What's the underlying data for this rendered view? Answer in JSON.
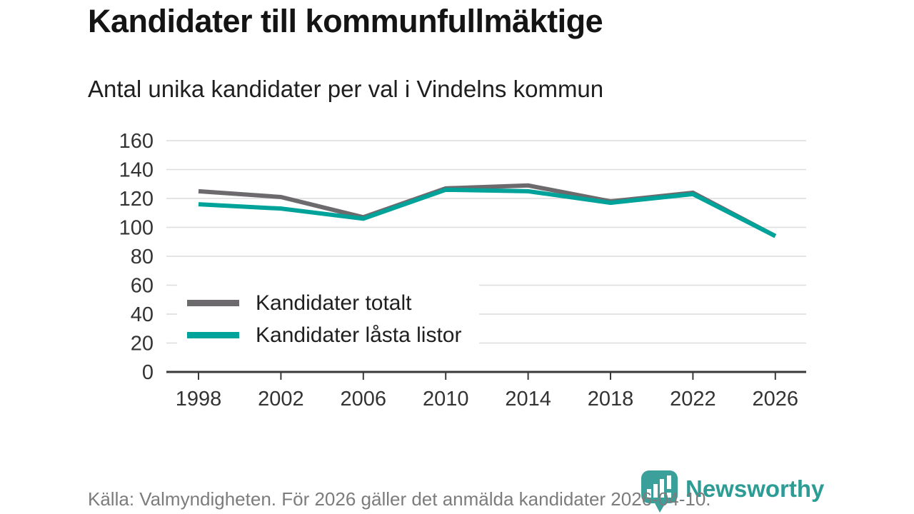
{
  "header": {
    "title": "Kandidater till kommunfullmäktige",
    "subtitle": "Antal unika kandidater per val i Vindelns kommun"
  },
  "chart_data": {
    "type": "line",
    "x": [
      1998,
      2002,
      2006,
      2010,
      2014,
      2018,
      2022,
      2026
    ],
    "series": [
      {
        "name": "Kandidater totalt",
        "color": "#6d6a6d",
        "values": [
          125,
          121,
          107,
          127,
          129,
          118,
          124,
          94
        ]
      },
      {
        "name": "Kandidater låsta listor",
        "color": "#00a39a",
        "values": [
          116,
          113,
          106,
          126,
          125,
          117,
          123,
          94
        ]
      }
    ],
    "ylim": [
      0,
      160
    ],
    "yticks": [
      0,
      20,
      40,
      60,
      80,
      100,
      120,
      140,
      160
    ],
    "grid": true,
    "legend_position": "inside-bottom-left",
    "colors": {
      "grid": "#dcdcdc",
      "axis": "#3a3a3a",
      "tick_label": "#333333"
    }
  },
  "footer": {
    "source": "Källa: Valmyndigheten. För 2026 gäller det anmälda kandidater 2026-04-10.",
    "brand": "Newsworthy",
    "brand_color": "#2d9c95"
  }
}
